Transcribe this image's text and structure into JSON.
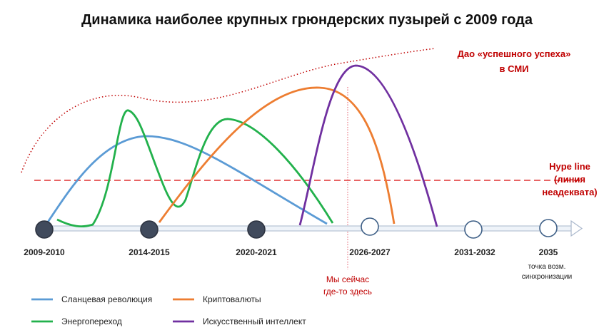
{
  "title": "Динамика наиболее крупных грюндерских пузырей с 2009 года",
  "timeline": [
    {
      "label": "2009-2010",
      "filled": true
    },
    {
      "label": "2014-2015",
      "filled": true
    },
    {
      "label": "2020-2021",
      "filled": true
    },
    {
      "label": "2026-2027",
      "filled": false
    },
    {
      "label": "2031-2032",
      "filled": false
    },
    {
      "label": "2035",
      "filled": false,
      "note_lines": [
        "точка возм.",
        "синхронизации"
      ]
    }
  ],
  "hype_line": {
    "label_lines": [
      "Hype line",
      "(линия",
      "неадеквата)"
    ],
    "color": "#e03030"
  },
  "dao": {
    "label_lines": [
      "Дао «успешного успеха»",
      "в СМИ"
    ],
    "color": "#c00000"
  },
  "now_marker": {
    "label_lines": [
      "Мы сейчас",
      "где-то здесь"
    ],
    "color": "#e05060"
  },
  "bubbles": [
    {
      "name": "Сланцевая революция",
      "color": "#5b9bd5"
    },
    {
      "name": "Криптовалюты",
      "color": "#ed7d31"
    },
    {
      "name": "Энергопереход",
      "color": "#22b14c"
    },
    {
      "name": "Искусственный интеллект",
      "color": "#7030a0"
    }
  ],
  "colors": {
    "timeline_axis": "#aab8cc",
    "filled_dot": "#404a5c",
    "open_dot": "#3e5f86"
  }
}
